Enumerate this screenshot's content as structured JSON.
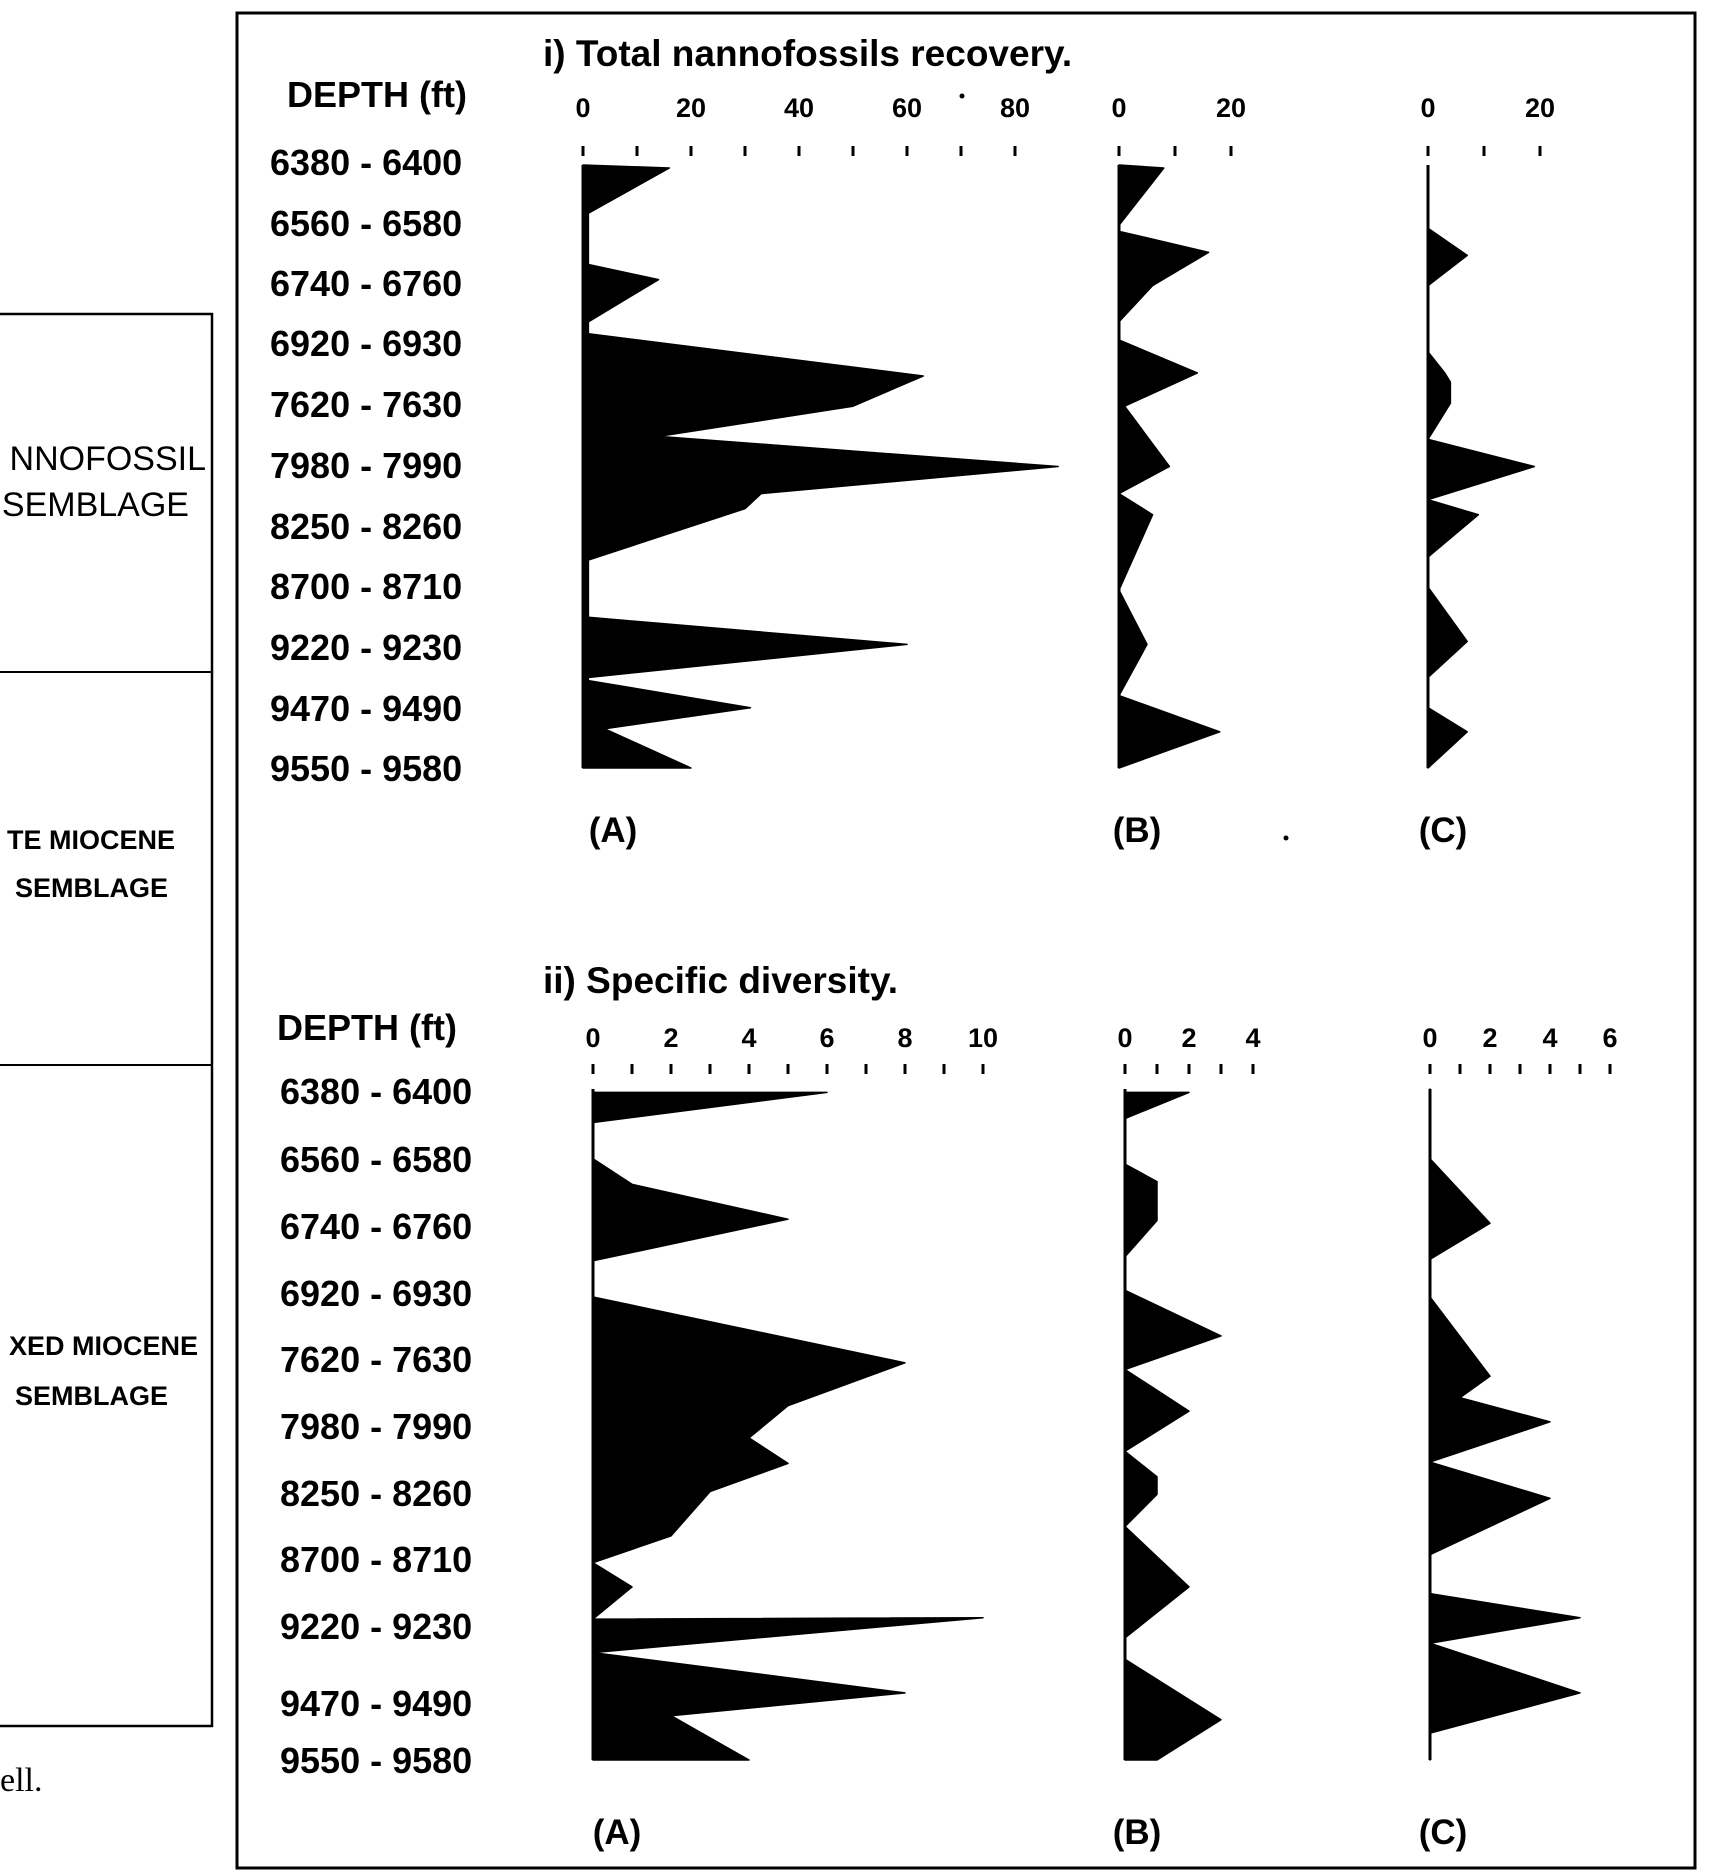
{
  "side_panel": {
    "row1": [
      "NNOFOSSIL",
      "SEMBLAGE"
    ],
    "row2": [
      "TE MIOCENE",
      "SEMBLAGE"
    ],
    "row3": [
      "XED MIOCENE",
      "SEMBLAGE"
    ]
  },
  "caption_fragment": "ell.",
  "depths": [
    "6380 - 6400",
    "6560 - 6580",
    "6740 - 6760",
    "6920 - 6930",
    "7620 - 7630",
    "7980 - 7990",
    "8250 - 8260",
    "8700 - 8710",
    "9220 - 9230",
    "9470 - 9490",
    "9550 - 9580"
  ],
  "chart_data": [
    {
      "type": "area",
      "title": "i) Total nannofossils recovery.",
      "ylabel": "DEPTH (ft)",
      "panels": [
        {
          "label": "(A)",
          "ticks": [
            "0",
            "20",
            "40",
            "60",
            "80"
          ],
          "xlim": [
            0,
            80
          ],
          "profile": [
            [
              0,
              0
            ],
            [
              16,
              0.005
            ],
            [
              1,
              0.08
            ],
            [
              1,
              0.165
            ],
            [
              14,
              0.19
            ],
            [
              1,
              0.26
            ],
            [
              1,
              0.28
            ],
            [
              63,
              0.35
            ],
            [
              50,
              0.4
            ],
            [
              14,
              0.45
            ],
            [
              88,
              0.5
            ],
            [
              33,
              0.545
            ],
            [
              30,
              0.57
            ],
            [
              1,
              0.655
            ],
            [
              1,
              0.75
            ],
            [
              60,
              0.795
            ],
            [
              1,
              0.85
            ],
            [
              1,
              0.855
            ],
            [
              31,
              0.9
            ],
            [
              4,
              0.935
            ],
            [
              20,
              1
            ]
          ]
        },
        {
          "label": "(B)",
          "ticks": [
            "0",
            "20"
          ],
          "xlim": [
            0,
            20
          ],
          "profile": [
            [
              0,
              0
            ],
            [
              8,
              0.005
            ],
            [
              0,
              0.1
            ],
            [
              0,
              0.11
            ],
            [
              16,
              0.145
            ],
            [
              6,
              0.2
            ],
            [
              0,
              0.26
            ],
            [
              0,
              0.29
            ],
            [
              14,
              0.345
            ],
            [
              1,
              0.4
            ],
            [
              9,
              0.5
            ],
            [
              0,
              0.545
            ],
            [
              6,
              0.58
            ],
            [
              0,
              0.705
            ],
            [
              5,
              0.795
            ],
            [
              0,
              0.88
            ],
            [
              18,
              0.94
            ],
            [
              0,
              1
            ]
          ]
        },
        {
          "label": "(C)",
          "ticks": [
            "0",
            "20"
          ],
          "xlim": [
            0,
            20
          ],
          "profile": [
            [
              0,
              0.105
            ],
            [
              7,
              0.15
            ],
            [
              0,
              0.2
            ],
            [
              0,
              0.31
            ],
            [
              3,
              0.345
            ],
            [
              4,
              0.36
            ],
            [
              4,
              0.395
            ],
            [
              0,
              0.455
            ],
            [
              19,
              0.5
            ],
            [
              0,
              0.555
            ],
            [
              9,
              0.58
            ],
            [
              0,
              0.65
            ],
            [
              0,
              0.7
            ],
            [
              7,
              0.79
            ],
            [
              0,
              0.85
            ],
            [
              0,
              0.9
            ],
            [
              7,
              0.94
            ],
            [
              0,
              1
            ]
          ]
        }
      ]
    },
    {
      "type": "area",
      "title": "ii) Specific diversity.",
      "ylabel": "DEPTH (ft)",
      "panels": [
        {
          "label": "(A)",
          "ticks": [
            "0",
            "2",
            "4",
            "6",
            "8",
            "10"
          ],
          "xlim": [
            0,
            10
          ],
          "profile": [
            [
              6,
              0.005
            ],
            [
              0,
              0.05
            ],
            [
              0,
              0.104
            ],
            [
              1,
              0.142
            ],
            [
              5,
              0.194
            ],
            [
              0,
              0.256
            ],
            [
              0,
              0.31
            ],
            [
              8,
              0.408
            ],
            [
              5,
              0.472
            ],
            [
              4,
              0.52
            ],
            [
              5,
              0.558
            ],
            [
              3,
              0.6
            ],
            [
              2,
              0.666
            ],
            [
              0,
              0.706
            ],
            [
              1,
              0.742
            ],
            [
              0,
              0.79
            ],
            [
              10,
              0.788
            ],
            [
              0,
              0.84
            ],
            [
              8,
              0.9
            ],
            [
              2,
              0.934
            ],
            [
              4,
              1
            ]
          ]
        },
        {
          "label": "(B)",
          "ticks": [
            "0",
            "2",
            "4"
          ],
          "xlim": [
            0,
            4
          ],
          "profile": [
            [
              2,
              0.005
            ],
            [
              0,
              0.044
            ],
            [
              0,
              0.112
            ],
            [
              1,
              0.138
            ],
            [
              1,
              0.196
            ],
            [
              0,
              0.25
            ],
            [
              0,
              0.3
            ],
            [
              3,
              0.368
            ],
            [
              0,
              0.418
            ],
            [
              2,
              0.48
            ],
            [
              0,
              0.54
            ],
            [
              1,
              0.578
            ],
            [
              1,
              0.604
            ],
            [
              0,
              0.652
            ],
            [
              2,
              0.742
            ],
            [
              0,
              0.818
            ],
            [
              0,
              0.85
            ],
            [
              3,
              0.94
            ],
            [
              1,
              1
            ],
            [
              0,
              1
            ]
          ]
        },
        {
          "label": "(C)",
          "ticks": [
            "0",
            "2",
            "4",
            "6"
          ],
          "xlim": [
            0,
            6
          ],
          "profile": [
            [
              0,
              0
            ],
            [
              0,
              0.104
            ],
            [
              2,
              0.2
            ],
            [
              0,
              0.254
            ],
            [
              0,
              0.31
            ],
            [
              2,
              0.428
            ],
            [
              1,
              0.46
            ],
            [
              4,
              0.496
            ],
            [
              0,
              0.556
            ],
            [
              4,
              0.61
            ],
            [
              0,
              0.694
            ],
            [
              0,
              0.752
            ],
            [
              5,
              0.788
            ],
            [
              0,
              0.826
            ],
            [
              5,
              0.9
            ],
            [
              0,
              0.96
            ],
            [
              0,
              1
            ]
          ]
        }
      ]
    }
  ]
}
